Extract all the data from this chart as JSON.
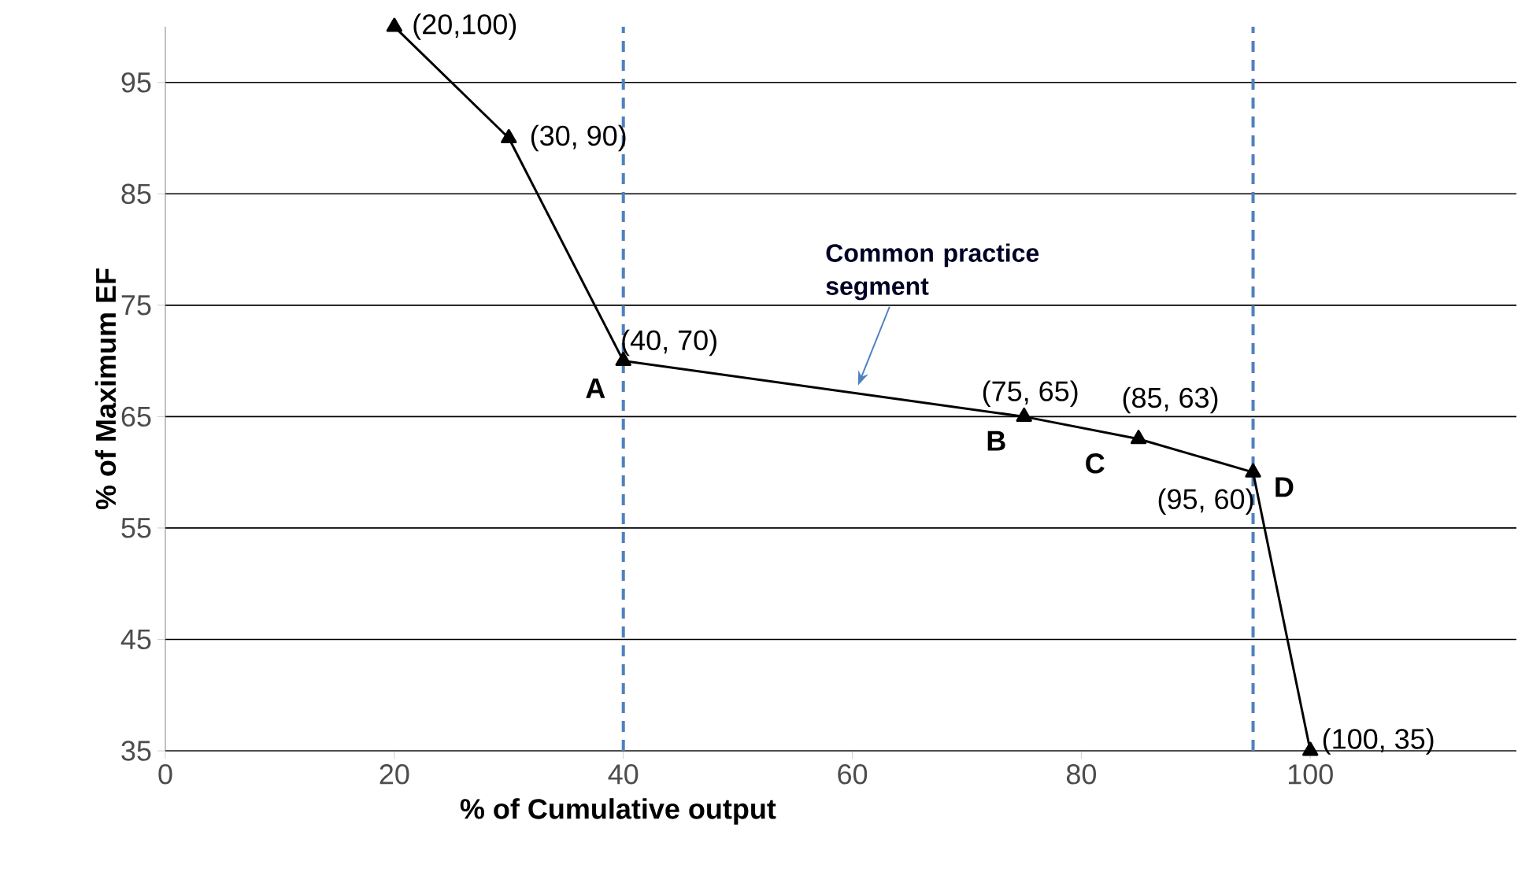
{
  "chart_data": {
    "type": "line",
    "xlabel": "% of Cumulative output",
    "ylabel": "% of Maximum EF",
    "x": [
      20,
      30,
      40,
      75,
      85,
      95,
      100
    ],
    "series": [
      {
        "color": "#000000",
        "values": [
          100,
          90,
          70,
          65,
          63,
          60,
          35
        ]
      }
    ],
    "xlim": [
      0,
      118
    ],
    "ylim": [
      35,
      100
    ],
    "xticks": [
      0,
      20,
      40,
      60,
      80,
      100
    ],
    "yticks": [
      35,
      45,
      55,
      65,
      75,
      85,
      95
    ],
    "grid": "y",
    "marker": "triangle",
    "line_style": "solid",
    "ref_lines": [
      {
        "axis": "x",
        "value": 40,
        "color": "#4f81bd",
        "line_style": "dashed"
      },
      {
        "axis": "x",
        "value": 95,
        "color": "#4f81bd",
        "line_style": "dashed"
      }
    ],
    "annotations": [
      {
        "text": "(20,100)",
        "x": 20,
        "y": 100
      },
      {
        "text": "(30, 90)",
        "x": 30,
        "y": 90
      },
      {
        "text": "(40, 70)",
        "x": 40,
        "y": 70
      },
      {
        "text": "(75, 65)",
        "x": 75,
        "y": 65
      },
      {
        "text": "(85, 63)",
        "x": 85,
        "y": 63
      },
      {
        "text": "(95, 60)",
        "x": 95,
        "y": 60
      },
      {
        "text": "(100, 35)",
        "x": 100,
        "y": 35
      },
      {
        "text": "**A**",
        "x": 40,
        "y": 70
      },
      {
        "text": "**B**",
        "x": 75,
        "y": 65
      },
      {
        "text": "**C**",
        "x": 85,
        "y": 63
      },
      {
        "text": "**D**",
        "x": 95,
        "y": 60
      },
      {
        "text": "**Common practice segment**",
        "x": 60.5,
        "y": 67.8
      }
    ]
  }
}
